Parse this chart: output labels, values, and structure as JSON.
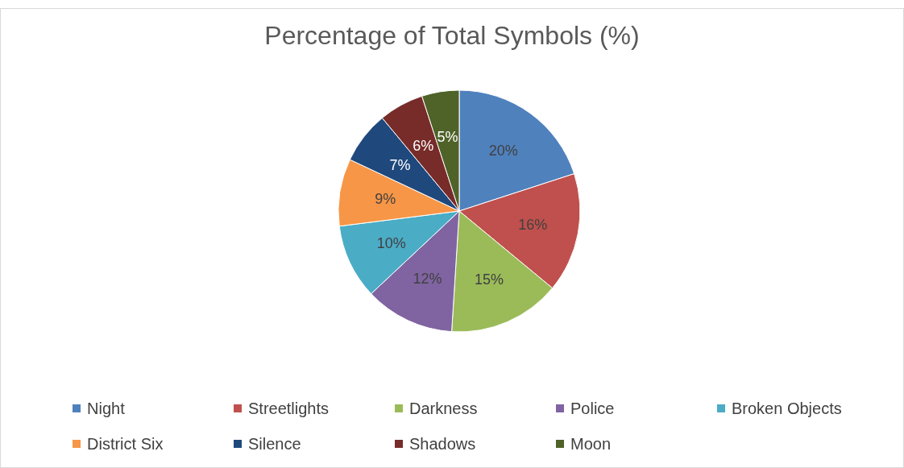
{
  "chart_data": {
    "type": "pie",
    "title": "Percentage of Total Symbols (%)",
    "categories": [
      "Night",
      "Streetlights",
      "Darkness",
      "Police",
      "Broken Objects",
      "District Six",
      "Silence",
      "Shadows",
      "Moon"
    ],
    "values": [
      20,
      16,
      15,
      12,
      10,
      9,
      7,
      6,
      5
    ],
    "value_labels": [
      "20%",
      "16%",
      "15%",
      "12%",
      "10%",
      "9%",
      "7%",
      "6%",
      "5%"
    ],
    "colors": [
      "#4f81bd",
      "#c0504d",
      "#9bbb59",
      "#8064a2",
      "#4bacc6",
      "#f79646",
      "#1f497d",
      "#772c2a",
      "#4f6228"
    ],
    "legend": "bottom"
  }
}
